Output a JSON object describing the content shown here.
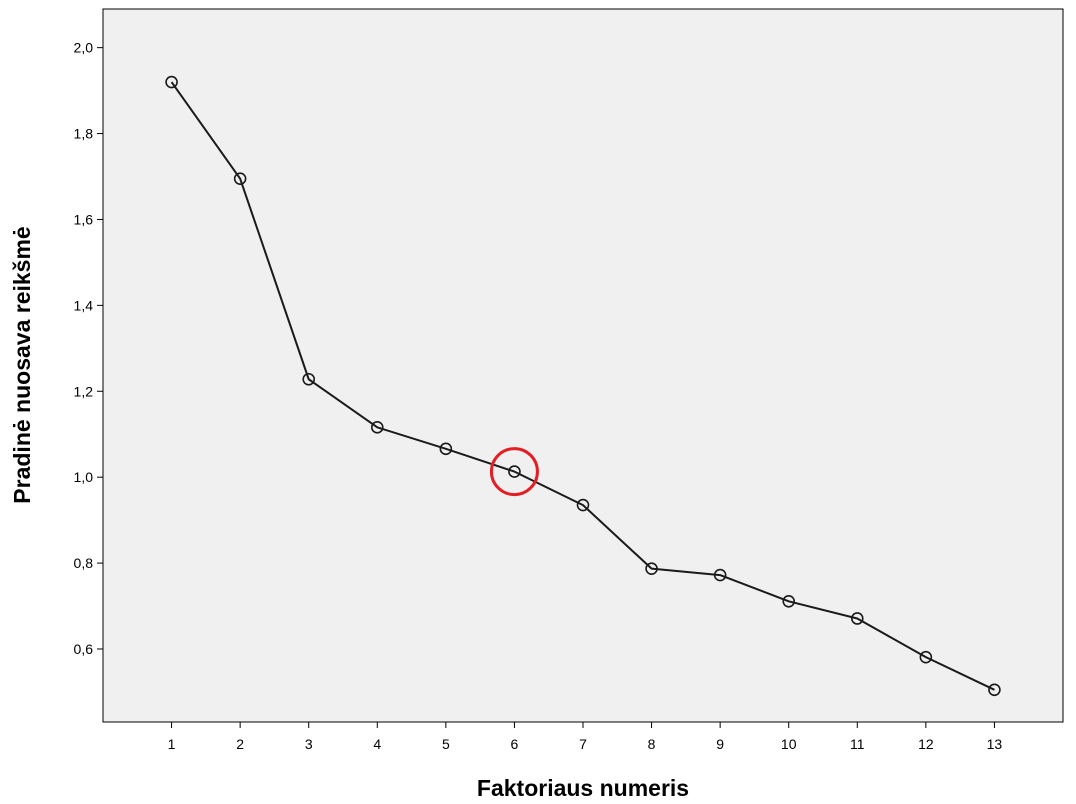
{
  "chart_data": {
    "type": "line",
    "xlabel": "Faktoriaus numeris",
    "ylabel": "Pradinė nuosava reikšmė",
    "x": [
      1,
      2,
      3,
      4,
      5,
      6,
      7,
      8,
      9,
      10,
      11,
      12,
      13
    ],
    "x_tick_labels": [
      "1",
      "2",
      "3",
      "4",
      "5",
      "6",
      "7",
      "8",
      "9",
      "10",
      "11",
      "12",
      "13"
    ],
    "y_ticks": [
      0.6,
      0.8,
      1.0,
      1.2,
      1.4,
      1.6,
      1.8,
      2.0
    ],
    "y_tick_labels": [
      "0,6",
      "0,8",
      "1,0",
      "1,2",
      "1,4",
      "1,6",
      "1,8",
      "2,0"
    ],
    "series": [
      {
        "values": [
          1.92,
          1.695,
          1.228,
          1.116,
          1.066,
          1.013,
          0.935,
          0.787,
          0.772,
          0.711,
          0.671,
          0.581,
          0.505
        ]
      }
    ],
    "xlim": [
      0,
      14
    ],
    "ylim": [
      0.43,
      2.09
    ],
    "grid": false,
    "highlight": {
      "x": 6,
      "y": 1.013
    },
    "colors": {
      "plot_background": "#f0f0f0",
      "line": "#1a1a1a",
      "highlight": "#e31e24"
    }
  }
}
